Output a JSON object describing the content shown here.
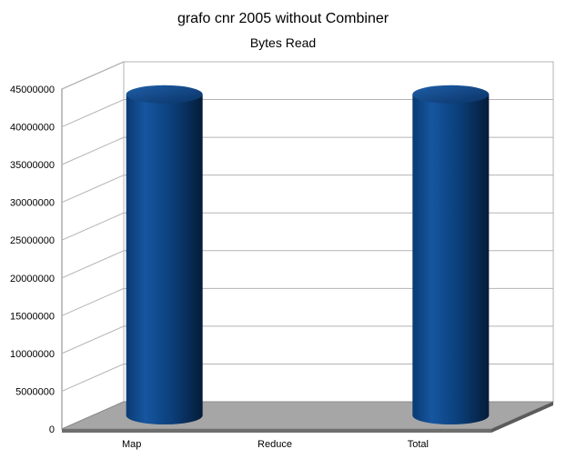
{
  "chart_data": {
    "type": "bar",
    "title": "grafo cnr 2005 without Combiner",
    "subtitle": "Bytes Read",
    "xlabel": "",
    "ylabel": "",
    "categories": [
      "Map",
      "Reduce",
      "Total"
    ],
    "series": [
      {
        "values": [
          42500000,
          0,
          42500000
        ]
      }
    ],
    "ylim": [
      0,
      45000000
    ],
    "yticks": [
      "0",
      "5000000",
      "10000000",
      "15000000",
      "20000000",
      "25000000",
      "30000000",
      "35000000",
      "40000000",
      "45000000"
    ],
    "grid": true,
    "legend": "none",
    "bar_style": "3d-cylinder",
    "colors": {
      "bar": "#0b3f7a",
      "bar_highlight": "#2a6bb3",
      "bar_dark": "#061f3e",
      "floor": "#a6a6a6",
      "grid": "#b3b3b3",
      "axis": "#808080"
    }
  }
}
